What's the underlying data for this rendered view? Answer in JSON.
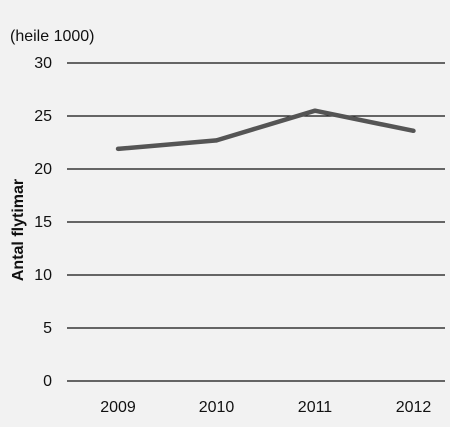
{
  "chart_data": {
    "type": "line",
    "unit_label": "(heile 1000)",
    "ylabel": "Antal flytimar",
    "xlabel": "",
    "title": "",
    "categories": [
      "2009",
      "2010",
      "2011",
      "2012"
    ],
    "series": [
      {
        "values": [
          21.9,
          22.7,
          25.5,
          23.6
        ]
      }
    ],
    "ylim": [
      0,
      30
    ],
    "yticks": [
      0,
      5,
      10,
      15,
      20,
      25,
      30
    ],
    "grid": true,
    "legend": "none",
    "colors": {
      "line": "#555555",
      "grid": "#111111",
      "background": "#f2f2f2"
    }
  }
}
